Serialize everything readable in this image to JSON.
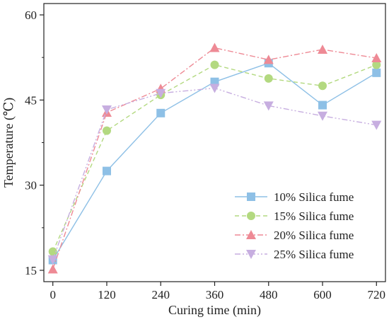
{
  "chart_data": {
    "type": "line",
    "xlabel": "Curing time (min)",
    "ylabel": "Temperature (℃)",
    "x": [
      0,
      120,
      240,
      360,
      480,
      600,
      720
    ],
    "xticks": [
      "0",
      "120",
      "240",
      "360",
      "480",
      "600",
      "720"
    ],
    "xlim": [
      -20,
      740
    ],
    "yticks": [
      "15",
      "30",
      "45",
      "60"
    ],
    "ylim": [
      13,
      62
    ],
    "legend_position": "bottom-right",
    "grid": false,
    "series": [
      {
        "name": "10% Silica fume",
        "color": "#8ec0e6",
        "marker": "square",
        "dash": "solid",
        "values": [
          16.8,
          32.5,
          42.7,
          48.2,
          51.5,
          44.1,
          49.8
        ]
      },
      {
        "name": "15% Silica fume",
        "color": "#b3d980",
        "marker": "circle",
        "dash": "dashed",
        "values": [
          18.3,
          39.6,
          45.9,
          51.2,
          48.8,
          47.5,
          51.2
        ]
      },
      {
        "name": "20% Silica fume",
        "color": "#ee8a95",
        "marker": "triangle",
        "dash": "dashdot",
        "values": [
          15.2,
          42.8,
          47.0,
          54.2,
          52.1,
          53.9,
          52.4
        ]
      },
      {
        "name": "25% Silica fume",
        "color": "#c7aee0",
        "marker": "triangle-down",
        "dash": "dashdotdot",
        "values": [
          16.9,
          43.3,
          46.2,
          47.1,
          44.0,
          42.2,
          40.6
        ]
      }
    ]
  }
}
